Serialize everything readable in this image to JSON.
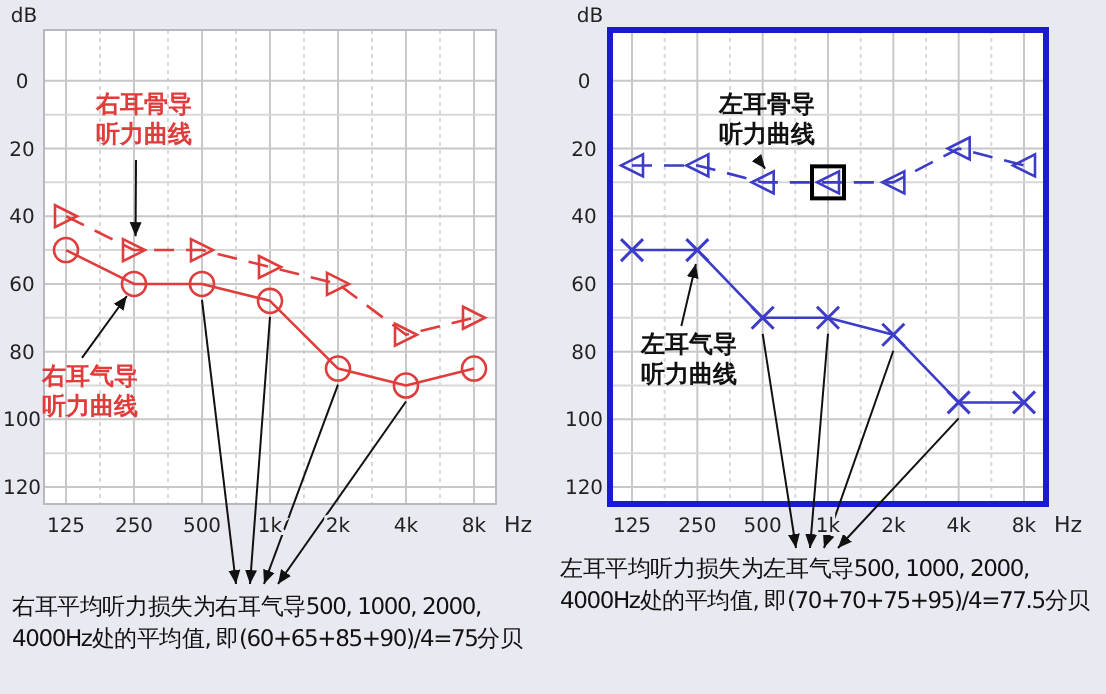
{
  "chart_data": [
    {
      "type": "line",
      "xlabel": "Hz",
      "ylabel": "dB",
      "categories": [
        "125",
        "250",
        "500",
        "1k",
        "2k",
        "4k",
        "8k"
      ],
      "ylim": [
        125,
        -15
      ],
      "yticks": [
        0,
        20,
        40,
        60,
        80,
        100,
        120
      ],
      "grid": true,
      "series": [
        {
          "color": "#e03c3c",
          "values": [
            50,
            60,
            60,
            65,
            85,
            90,
            85
          ],
          "marker": "circle",
          "line_style": "solid"
        },
        {
          "color": "#e03c3c",
          "values": [
            40,
            50,
            50,
            55,
            60,
            75,
            70
          ],
          "marker": "triangle",
          "line_style": "dashed"
        }
      ],
      "annotations": [
        {
          "text": "右耳骨导听力曲线",
          "x": "250",
          "y": 50
        },
        {
          "text": "右耳气导听力曲线",
          "x": "250",
          "y": 60
        },
        "右耳平均听力损失为右耳气导500, 1000, 2000, 4000Hz处的平均值, 即(60+65+85+90)/4=75分贝"
      ]
    },
    {
      "type": "line",
      "xlabel": "Hz",
      "ylabel": "dB",
      "categories": [
        "125",
        "250",
        "500",
        "1k",
        "2k",
        "4k",
        "8k"
      ],
      "ylim": [
        125,
        -15
      ],
      "yticks": [
        0,
        20,
        40,
        60,
        80,
        100,
        120
      ],
      "grid": true,
      "series": [
        {
          "color": "#3c3cc8",
          "values": [
            50,
            50,
            70,
            70,
            75,
            95,
            95
          ],
          "marker": "cross",
          "line_style": "solid"
        },
        {
          "color": "#3c3cc8",
          "values": [
            25,
            25,
            30,
            30,
            30,
            20,
            25
          ],
          "marker": "triangle",
          "line_style": "dashed"
        }
      ],
      "annotations": [
        {
          "text": "左耳骨导听力曲线",
          "x": "500",
          "y": 30
        },
        {
          "text": "左耳气导听力曲线",
          "x": "250",
          "y": 50
        },
        "左耳平均听力损失为左耳气导500, 1000, 2000, 4000Hz处的平均值, 即(70+70+75+95)/4=77.5分贝"
      ]
    }
  ]
}
